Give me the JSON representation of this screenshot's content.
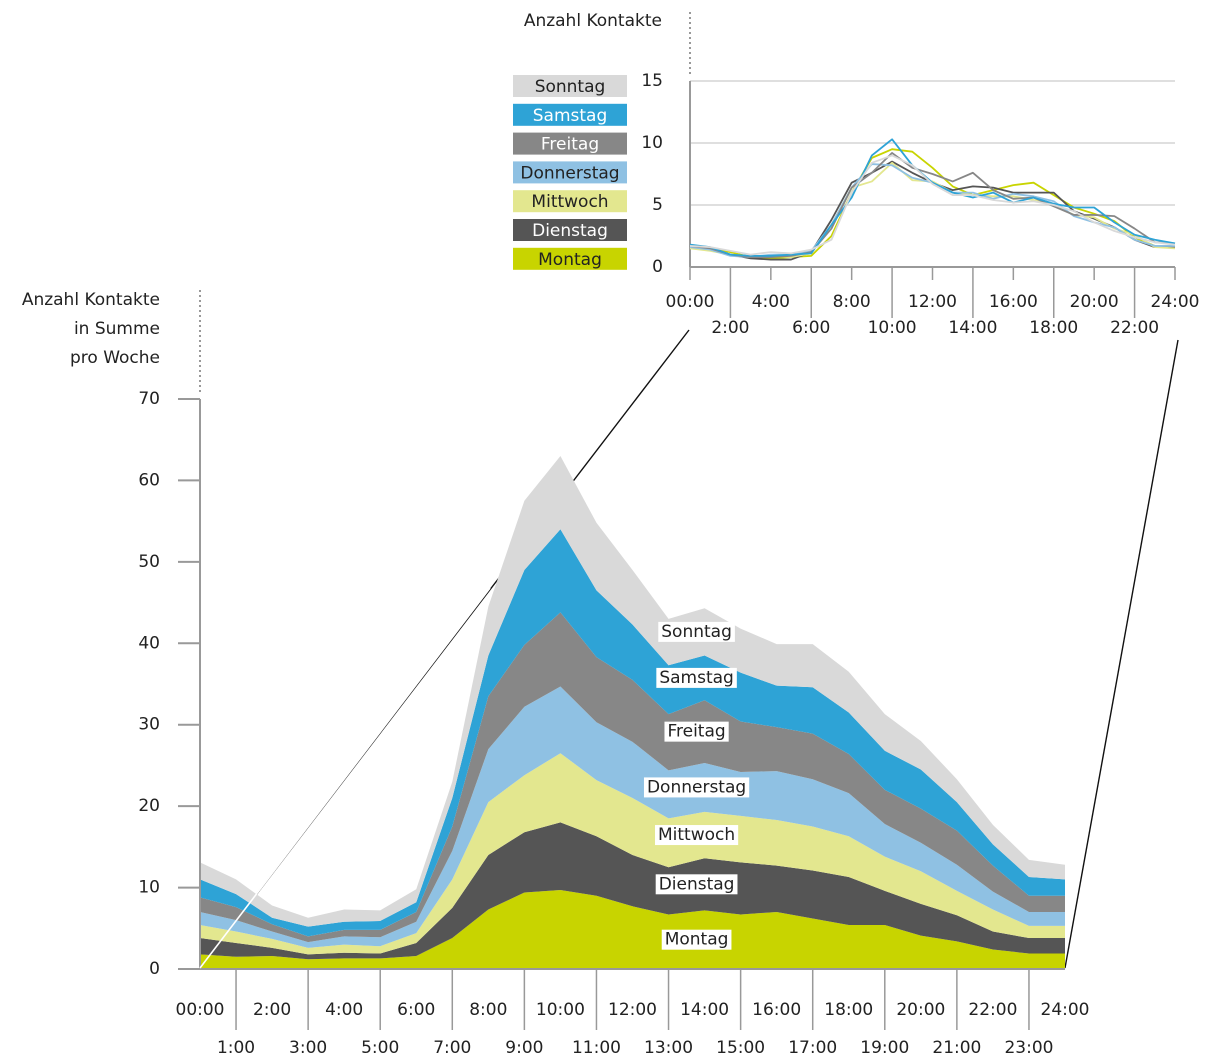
{
  "chart_data": [
    {
      "type": "stacked_area",
      "y_label": [
        "Anzahl Kontakte",
        "in Summe",
        "pro Woche"
      ],
      "categories": [
        "00:00",
        "1:00",
        "2:00",
        "3:00",
        "4:00",
        "5:00",
        "6:00",
        "7:00",
        "8:00",
        "9:00",
        "10:00",
        "11:00",
        "12:00",
        "13:00",
        "14:00",
        "15:00",
        "16:00",
        "17:00",
        "18:00",
        "19:00",
        "20:00",
        "21:00",
        "22:00",
        "23:00",
        "24:00"
      ],
      "ylim": [
        0,
        70
      ],
      "yticks": [
        0,
        10,
        20,
        30,
        40,
        50,
        60,
        70
      ],
      "series": [
        {
          "name": "Montag",
          "color": "#c8d400",
          "values": [
            1.8,
            1.5,
            1.6,
            1.2,
            1.3,
            1.3,
            1.6,
            3.8,
            7.3,
            9.4,
            9.7,
            9.0,
            7.7,
            6.7,
            7.2,
            6.7,
            7.0,
            6.2,
            5.4,
            5.4,
            4.1,
            3.4,
            2.4,
            1.9,
            1.9
          ]
        },
        {
          "name": "Dienstag",
          "color": "#555555",
          "values": [
            2.0,
            1.7,
            1.0,
            0.6,
            0.7,
            0.6,
            1.6,
            3.7,
            6.7,
            7.4,
            8.3,
            7.3,
            6.3,
            5.8,
            6.4,
            6.4,
            5.7,
            5.9,
            5.9,
            4.2,
            3.9,
            3.2,
            2.2,
            1.9,
            1.9
          ]
        },
        {
          "name": "Mittwoch",
          "color": "#e3e78f",
          "values": [
            1.6,
            1.4,
            1.1,
            0.8,
            1.0,
            0.9,
            1.2,
            3.5,
            6.5,
            7.0,
            8.5,
            6.9,
            7.0,
            6.0,
            5.7,
            5.7,
            5.6,
            5.4,
            5.0,
            4.2,
            4.0,
            3.0,
            2.7,
            1.5,
            1.5
          ]
        },
        {
          "name": "Donnerstag",
          "color": "#8fc1e3",
          "values": [
            1.6,
            1.4,
            0.9,
            0.7,
            1.0,
            1.1,
            1.4,
            3.5,
            6.5,
            8.4,
            8.2,
            7.1,
            6.9,
            5.9,
            6.0,
            5.4,
            6.0,
            5.8,
            5.3,
            4.0,
            3.5,
            3.2,
            2.2,
            1.7,
            1.7
          ]
        },
        {
          "name": "Freitag",
          "color": "#878787",
          "values": [
            1.8,
            1.6,
            0.9,
            0.7,
            0.8,
            0.9,
            1.2,
            3.0,
            6.5,
            7.6,
            9.1,
            8.0,
            7.6,
            6.9,
            7.7,
            6.2,
            5.4,
            5.6,
            4.8,
            4.2,
            4.2,
            4.2,
            3.2,
            2.0,
            2.0
          ]
        },
        {
          "name": "Samstag",
          "color": "#2ea3d6",
          "values": [
            2.2,
            1.6,
            0.8,
            1.2,
            1.0,
            1.1,
            1.2,
            3.5,
            5.0,
            9.2,
            10.2,
            8.2,
            6.8,
            6.0,
            5.5,
            6.0,
            5.1,
            5.7,
            5.1,
            4.8,
            4.8,
            3.5,
            2.6,
            2.3,
            2.0
          ]
        },
        {
          "name": "Sonntag",
          "color": "#d9d9d9",
          "values": [
            2.1,
            1.8,
            1.5,
            1.1,
            1.5,
            1.3,
            1.6,
            2.0,
            6.0,
            8.5,
            9.0,
            8.3,
            6.7,
            5.7,
            5.8,
            5.4,
            5.1,
            5.3,
            5.0,
            4.5,
            3.5,
            2.8,
            2.4,
            2.1,
            1.8
          ]
        }
      ]
    },
    {
      "type": "line",
      "y_label": "Anzahl Kontakte",
      "categories": [
        "00:00",
        null,
        "2:00",
        null,
        "4:00",
        null,
        "6:00",
        null,
        "8:00",
        null,
        "10:00",
        null,
        "12:00",
        null,
        "14:00",
        null,
        "16:00",
        null,
        "18:00",
        null,
        "20:00",
        null,
        "22:00",
        null,
        "24:00"
      ],
      "ylim": [
        0,
        15
      ],
      "yticks": [
        0,
        5,
        10,
        15
      ],
      "grid": true,
      "series": [
        {
          "name": "Montag",
          "color": "#c8d400",
          "values": [
            1.6,
            1.5,
            1.2,
            0.8,
            0.7,
            0.8,
            0.9,
            2.5,
            6.0,
            8.8,
            9.5,
            9.3,
            8.0,
            6.5,
            5.8,
            6.2,
            6.6,
            6.8,
            5.8,
            4.8,
            4.3,
            3.7,
            2.4,
            1.7,
            1.6
          ]
        },
        {
          "name": "Dienstag",
          "color": "#555555",
          "values": [
            1.7,
            1.5,
            1.0,
            0.7,
            0.6,
            0.6,
            1.2,
            3.8,
            6.8,
            7.6,
            8.5,
            7.6,
            6.8,
            6.2,
            6.5,
            6.4,
            6.0,
            6.0,
            6.0,
            4.5,
            3.9,
            3.2,
            2.2,
            1.6,
            1.6
          ]
        },
        {
          "name": "Mittwoch",
          "color": "#e3e78f",
          "values": [
            1.5,
            1.3,
            1.0,
            0.8,
            0.9,
            0.8,
            1.1,
            3.4,
            6.4,
            6.9,
            8.4,
            7.0,
            6.9,
            6.0,
            5.8,
            5.7,
            5.7,
            5.4,
            5.0,
            4.2,
            4.0,
            3.1,
            2.6,
            1.6,
            1.5
          ]
        },
        {
          "name": "Donnerstag",
          "color": "#8fc1e3",
          "values": [
            1.6,
            1.4,
            0.9,
            0.8,
            1.0,
            1.0,
            1.3,
            3.4,
            6.4,
            8.3,
            8.2,
            7.2,
            6.8,
            6.0,
            6.0,
            5.5,
            5.9,
            5.7,
            5.3,
            4.1,
            3.6,
            3.2,
            2.2,
            1.7,
            1.7
          ]
        },
        {
          "name": "Freitag",
          "color": "#878787",
          "values": [
            1.7,
            1.5,
            1.0,
            0.8,
            0.8,
            0.9,
            1.2,
            3.1,
            6.4,
            7.6,
            9.2,
            8.0,
            7.5,
            6.9,
            7.6,
            6.2,
            5.5,
            5.6,
            4.9,
            4.2,
            4.2,
            4.1,
            3.1,
            2.0,
            1.9
          ]
        },
        {
          "name": "Samstag",
          "color": "#2ea3d6",
          "values": [
            1.8,
            1.6,
            1.0,
            0.9,
            0.9,
            1.0,
            1.1,
            3.4,
            5.6,
            9.0,
            10.3,
            8.2,
            6.8,
            6.0,
            5.6,
            6.0,
            5.2,
            5.6,
            5.1,
            4.8,
            4.8,
            3.6,
            2.6,
            2.2,
            1.9
          ]
        },
        {
          "name": "Sonntag",
          "color": "#d9d9d9",
          "values": [
            1.7,
            1.6,
            1.3,
            1.0,
            1.2,
            1.1,
            1.4,
            2.2,
            6.0,
            8.4,
            9.0,
            8.2,
            6.7,
            5.8,
            5.8,
            5.4,
            5.2,
            5.3,
            5.0,
            4.5,
            3.6,
            2.9,
            2.4,
            2.0,
            1.8
          ]
        }
      ]
    }
  ]
}
